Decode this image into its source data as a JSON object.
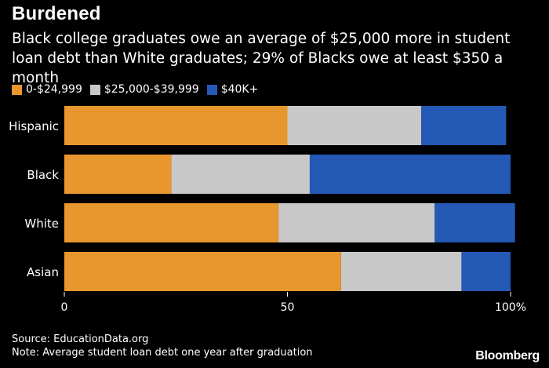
{
  "title": "Burdened",
  "subtitle": "Black college graduates owe an average of $25,000 more in student loan debt than White graduates; 29% of Blacks owe at least $350 a month",
  "footer": {
    "source": "Source: EducationData.org",
    "note": "Note: Average student loan debt one year after graduation",
    "brand": "Bloomberg"
  },
  "colors": {
    "background": "#000000",
    "text": "#ffffff",
    "orange": "#E8962E",
    "gray": "#C8C8C8",
    "blue": "#2459B5"
  },
  "chart_data": {
    "type": "bar",
    "orientation": "horizontal",
    "stacked": true,
    "categories": [
      "Hispanic",
      "Black",
      "White",
      "Asian"
    ],
    "series": [
      {
        "name": "0-$24,999",
        "color": "#E8962E",
        "values": [
          50,
          24,
          48,
          62
        ]
      },
      {
        "name": "$25,000-$39,999",
        "color": "#C8C8C8",
        "values": [
          30,
          31,
          35,
          27
        ]
      },
      {
        "name": "$40K+",
        "color": "#2459B5",
        "values": [
          19,
          45,
          18,
          11
        ]
      }
    ],
    "xlim": [
      0,
      100
    ],
    "xticks": [
      0,
      50,
      100
    ],
    "xtick_labels": [
      "0",
      "50",
      "100%"
    ],
    "legend": "top-left",
    "grid": false
  }
}
